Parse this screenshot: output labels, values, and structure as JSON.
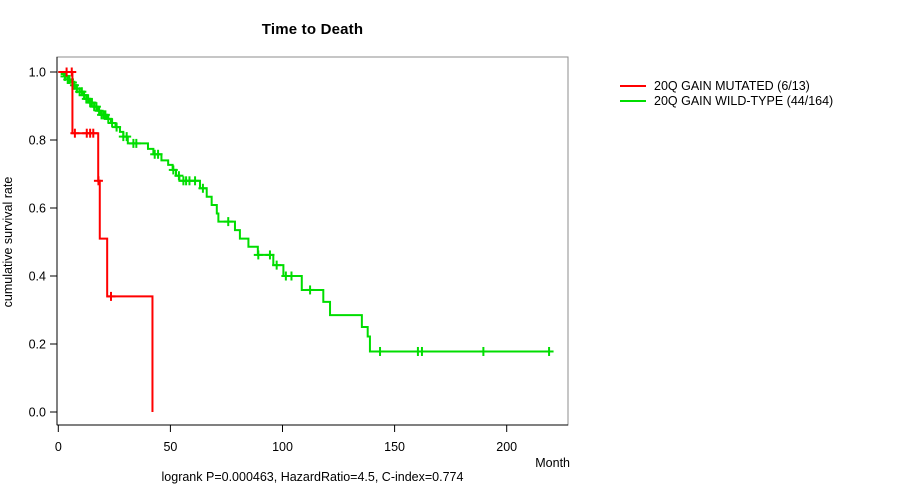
{
  "chart_data": {
    "type": "line",
    "subtype": "kaplan-meier-step-survival",
    "title": "Time to Death",
    "xlabel": "Month",
    "ylabel": "cumulative survival rate",
    "footer": "logrank P=0.000463, HazardRatio=4.5, C-index=0.774",
    "x_ticks": [
      0,
      50,
      100,
      150,
      200
    ],
    "y_ticks": [
      0.0,
      0.2,
      0.4,
      0.6,
      0.8,
      1.0
    ],
    "xlim": [
      0,
      227
    ],
    "ylim": [
      0,
      1
    ],
    "grid": false,
    "legend_position": "right-outside",
    "axis_color": "#000000",
    "box_color": "#8c8c8c",
    "series": [
      {
        "name": "20Q GAIN MUTATED (6/13)",
        "color": "#FF0000",
        "points": [
          [
            0,
            1.0
          ],
          [
            6.3,
            0.82
          ],
          [
            17.8,
            0.68
          ],
          [
            18.5,
            0.51
          ],
          [
            21.8,
            0.34
          ],
          [
            42,
            0.0
          ]
        ],
        "censor_months": [
          3.7,
          6.0,
          7.4,
          12.7,
          14.2,
          15.6,
          17.9,
          23.5
        ]
      },
      {
        "name": "20Q GAIN WILD-TYPE (44/164)",
        "color": "#00DD00",
        "points": [
          [
            0,
            1.0
          ],
          [
            1.5,
            0.994
          ],
          [
            2.5,
            0.987
          ],
          [
            4,
            0.978
          ],
          [
            5.5,
            0.969
          ],
          [
            6.5,
            0.961
          ],
          [
            8,
            0.951
          ],
          [
            9.5,
            0.942
          ],
          [
            11,
            0.932
          ],
          [
            12.5,
            0.921
          ],
          [
            14,
            0.91
          ],
          [
            16,
            0.898
          ],
          [
            17.5,
            0.886
          ],
          [
            19,
            0.874
          ],
          [
            21.5,
            0.862
          ],
          [
            23.5,
            0.85
          ],
          [
            25.5,
            0.838
          ],
          [
            27.5,
            0.824
          ],
          [
            29,
            0.81
          ],
          [
            31,
            0.79
          ],
          [
            40,
            0.774
          ],
          [
            42.4,
            0.758
          ],
          [
            46,
            0.74
          ],
          [
            49,
            0.727
          ],
          [
            51,
            0.712
          ],
          [
            52.5,
            0.695
          ],
          [
            54,
            0.68
          ],
          [
            63.2,
            0.658
          ],
          [
            66.2,
            0.633
          ],
          [
            68.4,
            0.609
          ],
          [
            70.7,
            0.584
          ],
          [
            71.4,
            0.56
          ],
          [
            78.8,
            0.535
          ],
          [
            81,
            0.51
          ],
          [
            84.8,
            0.486
          ],
          [
            89,
            0.462
          ],
          [
            95.9,
            0.432
          ],
          [
            100.4,
            0.4
          ],
          [
            108.6,
            0.359
          ],
          [
            118.2,
            0.324
          ],
          [
            121.2,
            0.285
          ],
          [
            135.4,
            0.25
          ],
          [
            138,
            0.222
          ],
          [
            139,
            0.178
          ]
        ],
        "end_month": 219,
        "censor_months": [
          3,
          4.2,
          5,
          6.3,
          7.2,
          8.3,
          9.5,
          10.5,
          11.5,
          12.5,
          13.3,
          14.2,
          15,
          16,
          17,
          18.2,
          19.3,
          20.2,
          21,
          22.3,
          24,
          26,
          29,
          30.5,
          33.5,
          34.8,
          43,
          44.5,
          51.3,
          53.8,
          55.8,
          57,
          58.5,
          61,
          64.5,
          75.8,
          89.2,
          94.4,
          97.4,
          101.5,
          104,
          112.3,
          143.5,
          160.4,
          162.2,
          189.6,
          218.9
        ]
      }
    ]
  }
}
